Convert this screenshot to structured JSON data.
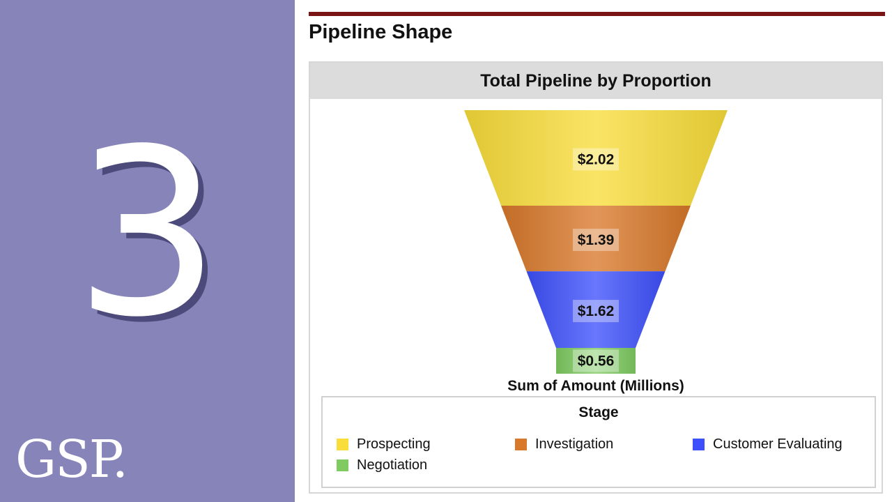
{
  "slide": {
    "number": "3",
    "logo_text": "GSP.",
    "page_title": "Pipeline Shape"
  },
  "chart_data": {
    "type": "funnel",
    "title": "Total Pipeline by Proportion",
    "value_label": "Sum of Amount (Millions)",
    "categories": [
      "Prospecting",
      "Investigation",
      "Customer Evaluating",
      "Negotiation"
    ],
    "values": [
      2.02,
      1.39,
      1.62,
      0.56
    ],
    "labels": [
      "$2.02",
      "$1.39",
      "$1.62",
      "$0.56"
    ],
    "colors": [
      "#f9dd3a",
      "#d8782a",
      "#3d50fb",
      "#7fcb62"
    ],
    "legend": {
      "title": "Stage",
      "placement": "bottom",
      "entries": [
        "Prospecting",
        "Investigation",
        "Customer Evaluating",
        "Negotiation"
      ]
    }
  }
}
